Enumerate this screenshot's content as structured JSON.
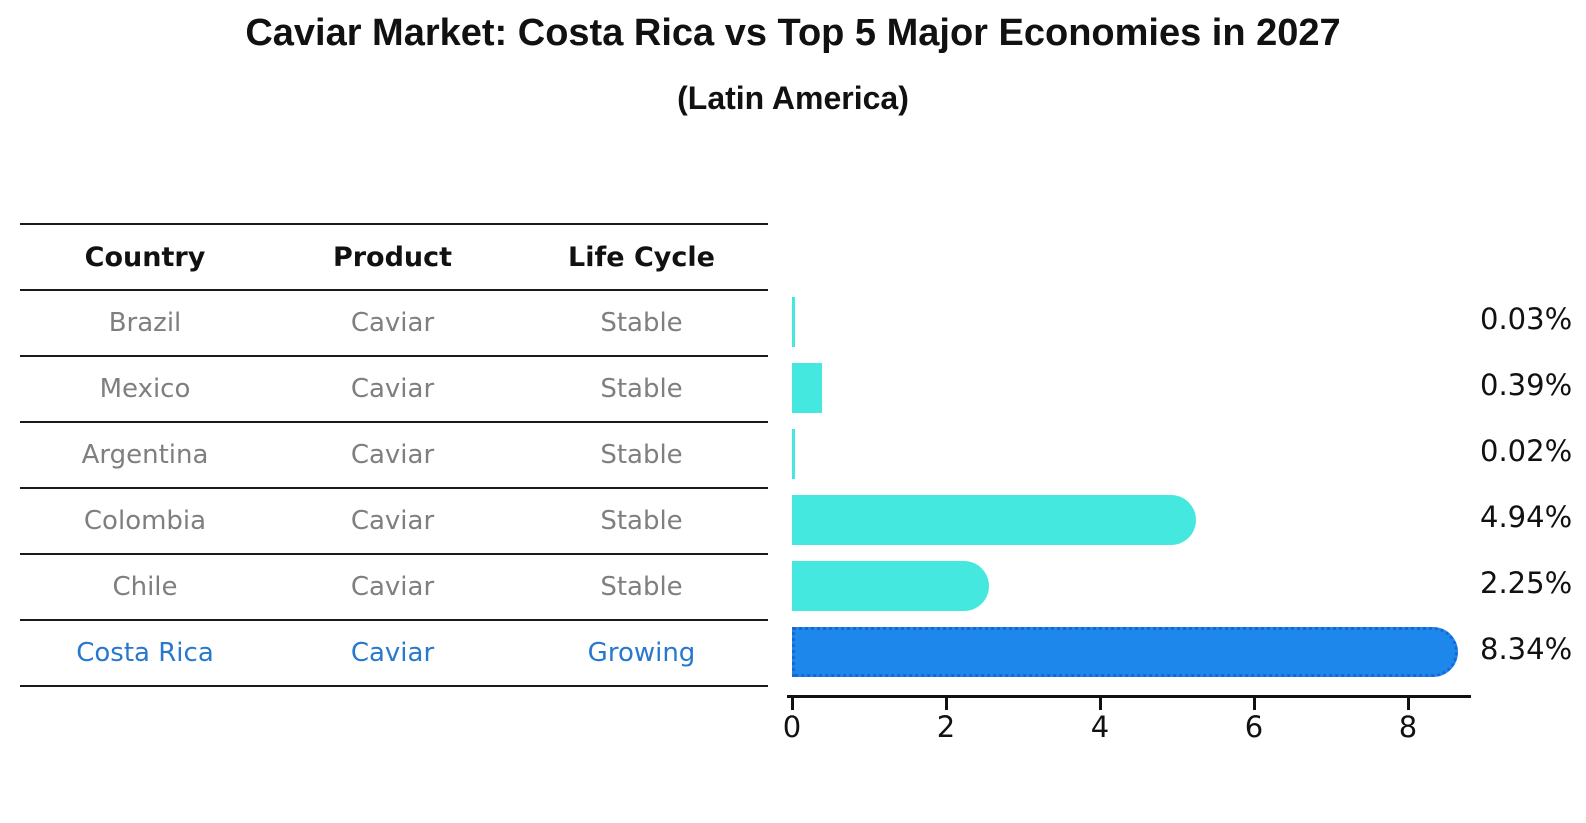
{
  "title": "Caviar Market: Costa Rica vs Top 5 Major Economies in 2027",
  "subtitle": "(Latin America)",
  "table": {
    "headers": [
      "Country",
      "Product",
      "Life Cycle"
    ],
    "rows": [
      {
        "cells": [
          "Brazil",
          "Caviar",
          "Stable"
        ],
        "highlight": false
      },
      {
        "cells": [
          "Mexico",
          "Caviar",
          "Stable"
        ],
        "highlight": false
      },
      {
        "cells": [
          "Argentina",
          "Caviar",
          "Stable"
        ],
        "highlight": false
      },
      {
        "cells": [
          "Colombia",
          "Caviar",
          "Stable"
        ],
        "highlight": false
      },
      {
        "cells": [
          "Chile",
          "Caviar",
          "Stable"
        ],
        "highlight": false
      },
      {
        "cells": [
          "Costa Rica",
          "Caviar",
          "Growing"
        ],
        "highlight": true
      }
    ]
  },
  "chart_data": {
    "type": "bar",
    "orientation": "horizontal",
    "categories": [
      "Brazil",
      "Mexico",
      "Argentina",
      "Colombia",
      "Chile",
      "Costa Rica"
    ],
    "values": [
      0.03,
      0.39,
      0.02,
      4.94,
      2.25,
      8.34
    ],
    "value_labels": [
      "0.03%",
      "0.39%",
      "0.02%",
      "4.94%",
      "2.25%",
      "8.34%"
    ],
    "xticks": [
      0,
      2,
      4,
      6,
      8
    ],
    "xlim": [
      0,
      8.8
    ],
    "grid": false,
    "legend": "none",
    "highlight_index": 5,
    "highlight_category": "Costa Rica"
  },
  "colors": {
    "bar": "#45E8DF",
    "highlight_bar": "#1E87EB",
    "highlight_border": "#1668D9",
    "row_text": "#7F7F7F",
    "highlight_text": "#2878CD",
    "line": "#1A1A1A"
  }
}
